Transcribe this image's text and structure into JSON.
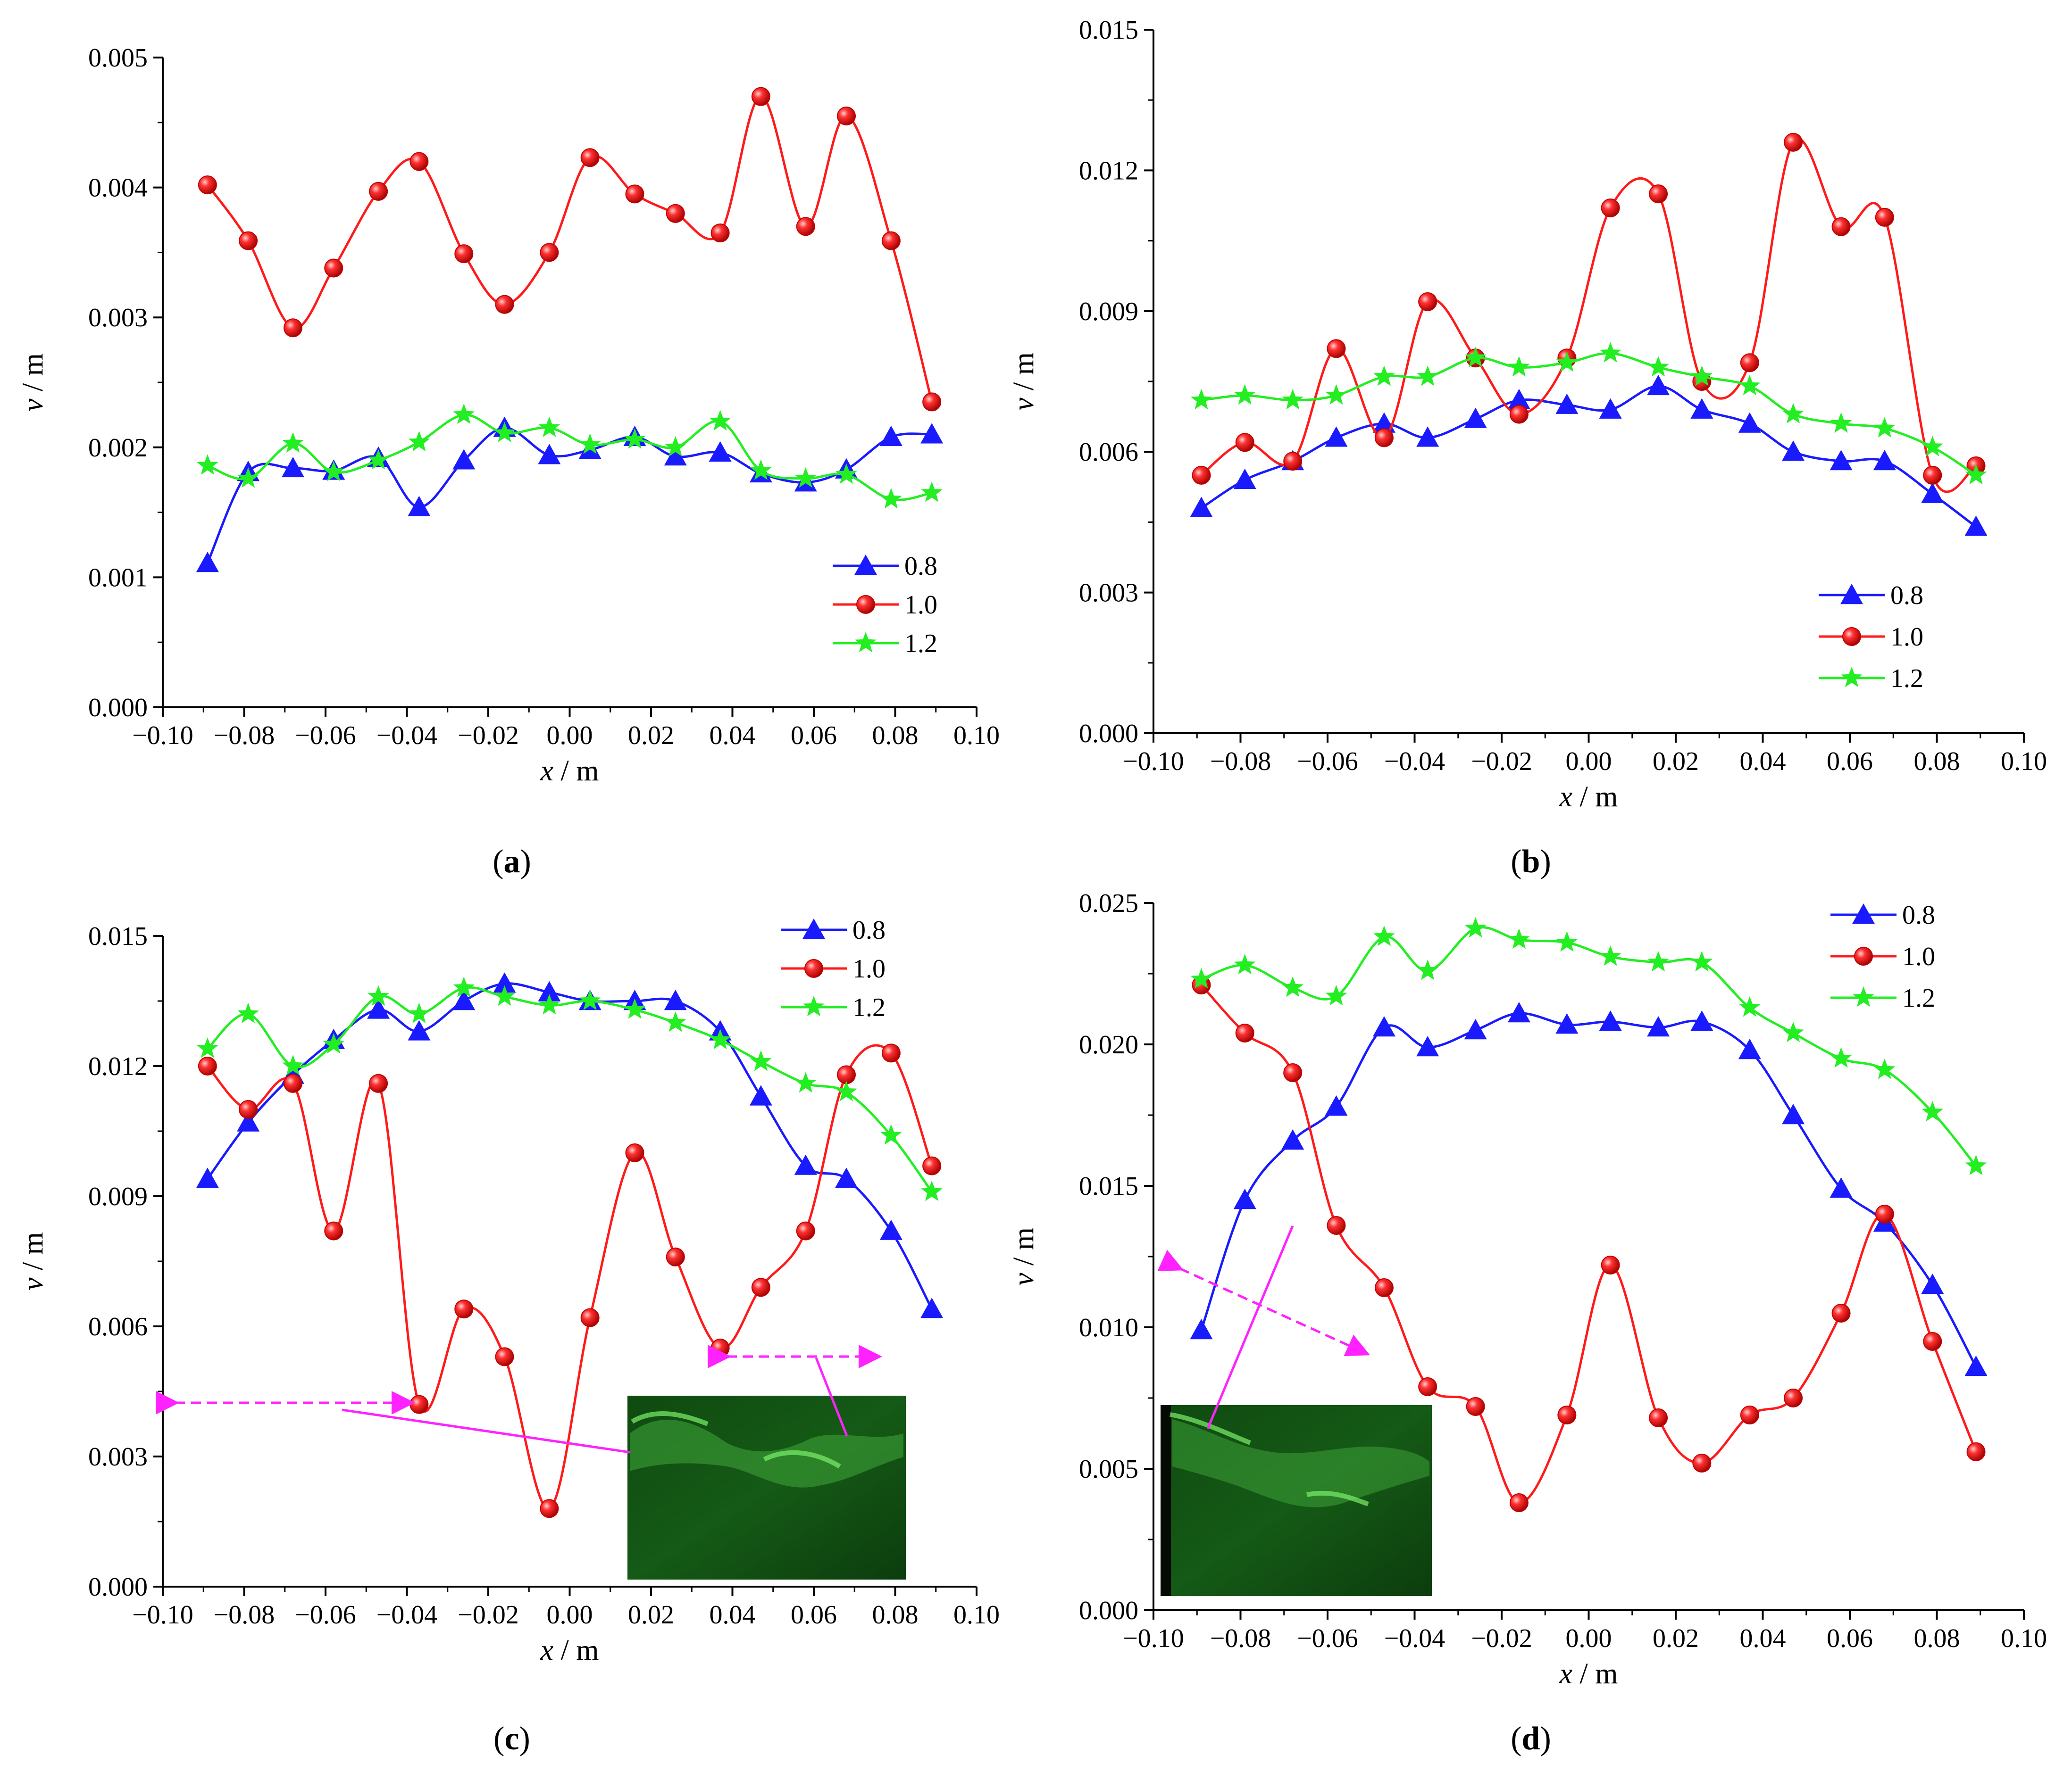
{
  "figure": {
    "panels_note": "four line charts of v versus x"
  },
  "chart_data": [
    {
      "id": "a",
      "panel_label": "a",
      "type": "line",
      "xlabel_var": "x",
      "xlabel_unit": " / m",
      "ylabel_var": "v",
      "ylabel_unit": " / m",
      "xlim": [
        -0.1,
        0.1
      ],
      "ylim": [
        0,
        0.005
      ],
      "xticks": [
        "−0.10",
        "−0.08",
        "−0.06",
        "−0.04",
        "−0.02",
        "0.00",
        "0.02",
        "0.04",
        "0.06",
        "0.08",
        "0.10"
      ],
      "yticks": [
        "0.000",
        "0.001",
        "0.002",
        "0.003",
        "0.004",
        "0.005"
      ],
      "legend_position": "lower-right",
      "x": [
        -0.089,
        -0.079,
        -0.068,
        -0.058,
        -0.047,
        -0.037,
        -0.026,
        -0.016,
        -0.005,
        0.005,
        0.016,
        0.026,
        0.037,
        0.047,
        0.058,
        0.068,
        0.079,
        0.089
      ],
      "series": [
        {
          "name": "0.8",
          "marker": "triangle",
          "color": "#1a1aff",
          "values": [
            0.00111,
            0.00181,
            0.00184,
            0.00182,
            0.00192,
            0.00154,
            0.0019,
            0.00215,
            0.00194,
            0.00198,
            0.00208,
            0.00193,
            0.00196,
            0.0018,
            0.00173,
            0.00183,
            0.00208,
            0.0021
          ]
        },
        {
          "name": "1.0",
          "marker": "sphere",
          "color": "#ff1a1a",
          "values": [
            0.00402,
            0.00359,
            0.00292,
            0.00338,
            0.00397,
            0.0042,
            0.00349,
            0.0031,
            0.0035,
            0.00423,
            0.00395,
            0.0038,
            0.00365,
            0.0047,
            0.0037,
            0.00455,
            0.00359,
            0.00235
          ]
        },
        {
          "name": "1.2",
          "marker": "star",
          "color": "#22ee22",
          "values": [
            0.00186,
            0.00176,
            0.00203,
            0.00181,
            0.0019,
            0.00204,
            0.00225,
            0.00211,
            0.00215,
            0.00202,
            0.00206,
            0.002,
            0.0022,
            0.00182,
            0.00176,
            0.00179,
            0.0016,
            0.00165
          ]
        }
      ]
    },
    {
      "id": "b",
      "panel_label": "b",
      "type": "line",
      "xlabel_var": "x",
      "xlabel_unit": " / m",
      "ylabel_var": "v",
      "ylabel_unit": " / m",
      "xlim": [
        -0.1,
        0.1
      ],
      "ylim": [
        0,
        0.015
      ],
      "xticks": [
        "−0.10",
        "−0.08",
        "−0.06",
        "−0.04",
        "−0.02",
        "0.00",
        "0.02",
        "0.04",
        "0.06",
        "0.08",
        "0.10"
      ],
      "yticks": [
        "0.000",
        "0.003",
        "0.006",
        "0.009",
        "0.012",
        "0.015"
      ],
      "legend_position": "lower-right",
      "x": [
        -0.089,
        -0.079,
        -0.068,
        -0.058,
        -0.047,
        -0.037,
        -0.026,
        -0.016,
        -0.005,
        0.005,
        0.016,
        0.026,
        0.037,
        0.047,
        0.058,
        0.068,
        0.079,
        0.089
      ],
      "series": [
        {
          "name": "0.8",
          "marker": "triangle",
          "color": "#1a1aff",
          "values": [
            0.0048,
            0.0054,
            0.0058,
            0.0063,
            0.0066,
            0.0063,
            0.0067,
            0.0071,
            0.007,
            0.0069,
            0.0074,
            0.0069,
            0.0066,
            0.006,
            0.0058,
            0.0058,
            0.0051,
            0.0044
          ]
        },
        {
          "name": "1.0",
          "marker": "sphere",
          "color": "#ff1a1a",
          "values": [
            0.0055,
            0.0062,
            0.0058,
            0.0082,
            0.0063,
            0.0092,
            0.008,
            0.0068,
            0.008,
            0.0112,
            0.0115,
            0.0075,
            0.0079,
            0.0126,
            0.0108,
            0.011,
            0.0055,
            0.0057
          ]
        },
        {
          "name": "1.2",
          "marker": "star",
          "color": "#22ee22",
          "values": [
            0.0071,
            0.0072,
            0.0071,
            0.0072,
            0.0076,
            0.0076,
            0.008,
            0.0078,
            0.0079,
            0.0081,
            0.0078,
            0.0076,
            0.0074,
            0.0068,
            0.0066,
            0.0065,
            0.0061,
            0.0055
          ]
        }
      ]
    },
    {
      "id": "c",
      "panel_label": "c",
      "type": "line",
      "xlabel_var": "x",
      "xlabel_unit": " / m",
      "ylabel_var": "v",
      "ylabel_unit": " / m",
      "xlim": [
        -0.1,
        0.1
      ],
      "ylim": [
        0,
        0.015
      ],
      "xticks": [
        "−0.10",
        "−0.08",
        "−0.06",
        "−0.04",
        "−0.02",
        "0.00",
        "0.02",
        "0.04",
        "0.06",
        "0.08",
        "0.10"
      ],
      "yticks": [
        "0.000",
        "0.003",
        "0.006",
        "0.009",
        "0.012",
        "0.015"
      ],
      "legend_position": "top-right",
      "x": [
        -0.089,
        -0.079,
        -0.068,
        -0.058,
        -0.047,
        -0.037,
        -0.026,
        -0.016,
        -0.005,
        0.005,
        0.016,
        0.026,
        0.037,
        0.047,
        0.058,
        0.068,
        0.079,
        0.089
      ],
      "series": [
        {
          "name": "0.8",
          "marker": "triangle",
          "color": "#1a1aff",
          "values": [
            0.0094,
            0.0107,
            0.0118,
            0.0126,
            0.0133,
            0.0128,
            0.0135,
            0.0139,
            0.0137,
            0.0135,
            0.0135,
            0.0135,
            0.0128,
            0.0113,
            0.0097,
            0.0094,
            0.0082,
            0.0064
          ]
        },
        {
          "name": "1.0",
          "marker": "sphere",
          "color": "#ff1a1a",
          "values": [
            0.012,
            0.011,
            0.0116,
            0.0082,
            0.0116,
            0.0042,
            0.0064,
            0.0053,
            0.0018,
            0.0062,
            0.01,
            0.0076,
            0.0055,
            0.0069,
            0.0082,
            0.0118,
            0.0123,
            0.0097
          ]
        },
        {
          "name": "1.2",
          "marker": "star",
          "color": "#22ee22",
          "values": [
            0.0124,
            0.0132,
            0.012,
            0.0125,
            0.0136,
            0.0132,
            0.0138,
            0.0136,
            0.0134,
            0.0135,
            0.0133,
            0.013,
            0.0126,
            0.0121,
            0.0116,
            0.0114,
            0.0104,
            0.0091
          ]
        }
      ]
    },
    {
      "id": "d",
      "panel_label": "d",
      "type": "line",
      "xlabel_var": "x",
      "xlabel_unit": " / m",
      "ylabel_var": "v",
      "ylabel_unit": " / m",
      "xlim": [
        -0.1,
        0.1
      ],
      "ylim": [
        0,
        0.025
      ],
      "xticks": [
        "−0.10",
        "−0.08",
        "−0.06",
        "−0.04",
        "−0.02",
        "0.00",
        "0.02",
        "0.04",
        "0.06",
        "0.08",
        "0.10"
      ],
      "yticks": [
        "0.000",
        "0.005",
        "0.010",
        "0.015",
        "0.020",
        "0.025"
      ],
      "legend_position": "top-right",
      "x": [
        -0.089,
        -0.079,
        -0.068,
        -0.058,
        -0.047,
        -0.037,
        -0.026,
        -0.016,
        -0.005,
        0.005,
        0.016,
        0.026,
        0.037,
        0.047,
        0.058,
        0.068,
        0.079,
        0.089
      ],
      "series": [
        {
          "name": "0.8",
          "marker": "triangle",
          "color": "#1a1aff",
          "values": [
            0.0099,
            0.0145,
            0.0166,
            0.0178,
            0.0206,
            0.0199,
            0.0205,
            0.0211,
            0.0207,
            0.0208,
            0.0206,
            0.0208,
            0.0198,
            0.0175,
            0.0149,
            0.0137,
            0.0115,
            0.0086
          ]
        },
        {
          "name": "1.0",
          "marker": "sphere",
          "color": "#ff1a1a",
          "values": [
            0.0221,
            0.0204,
            0.019,
            0.0136,
            0.0114,
            0.0079,
            0.0072,
            0.0038,
            0.0069,
            0.0122,
            0.0068,
            0.0052,
            0.0069,
            0.0075,
            0.0105,
            0.014,
            0.0095,
            0.0056
          ]
        },
        {
          "name": "1.2",
          "marker": "star",
          "color": "#22ee22",
          "values": [
            0.0223,
            0.0228,
            0.022,
            0.0217,
            0.0238,
            0.0226,
            0.0241,
            0.0237,
            0.0236,
            0.0231,
            0.0229,
            0.0229,
            0.0213,
            0.0204,
            0.0195,
            0.0191,
            0.0176,
            0.0157
          ]
        }
      ]
    }
  ]
}
